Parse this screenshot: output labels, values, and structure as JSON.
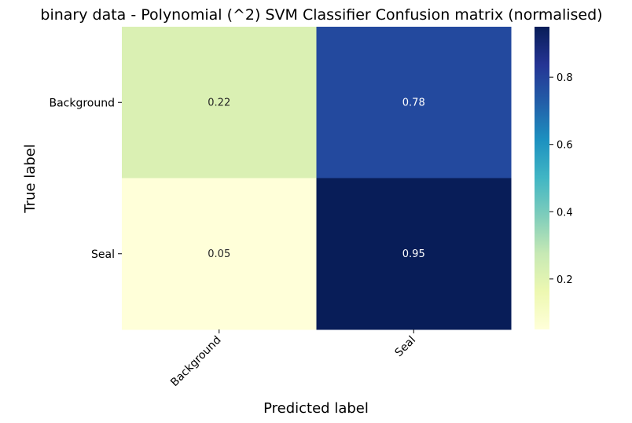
{
  "chart_data": {
    "type": "heatmap",
    "title": "binary data - Polynomial (^2) SVM Classifier Confusion matrix (normalised)",
    "xlabel": "Predicted label",
    "ylabel": "True label",
    "x_categories": [
      "Background",
      "Seal"
    ],
    "y_categories": [
      "Background",
      "Seal"
    ],
    "values": [
      [
        0.22,
        0.78
      ],
      [
        0.05,
        0.95
      ]
    ],
    "value_labels": [
      [
        "0.22",
        "0.78"
      ],
      [
        "0.05",
        "0.95"
      ]
    ],
    "colormap": "YlGnBu",
    "colorbar": {
      "range": [
        0.05,
        0.95
      ],
      "ticks": [
        0.2,
        0.4,
        0.6,
        0.8
      ],
      "tick_labels": [
        "0.2",
        "0.4",
        "0.6",
        "0.8"
      ]
    },
    "annotation_colors": {
      "light_cells": "#262626",
      "dark_cells": "#ffffff"
    }
  }
}
